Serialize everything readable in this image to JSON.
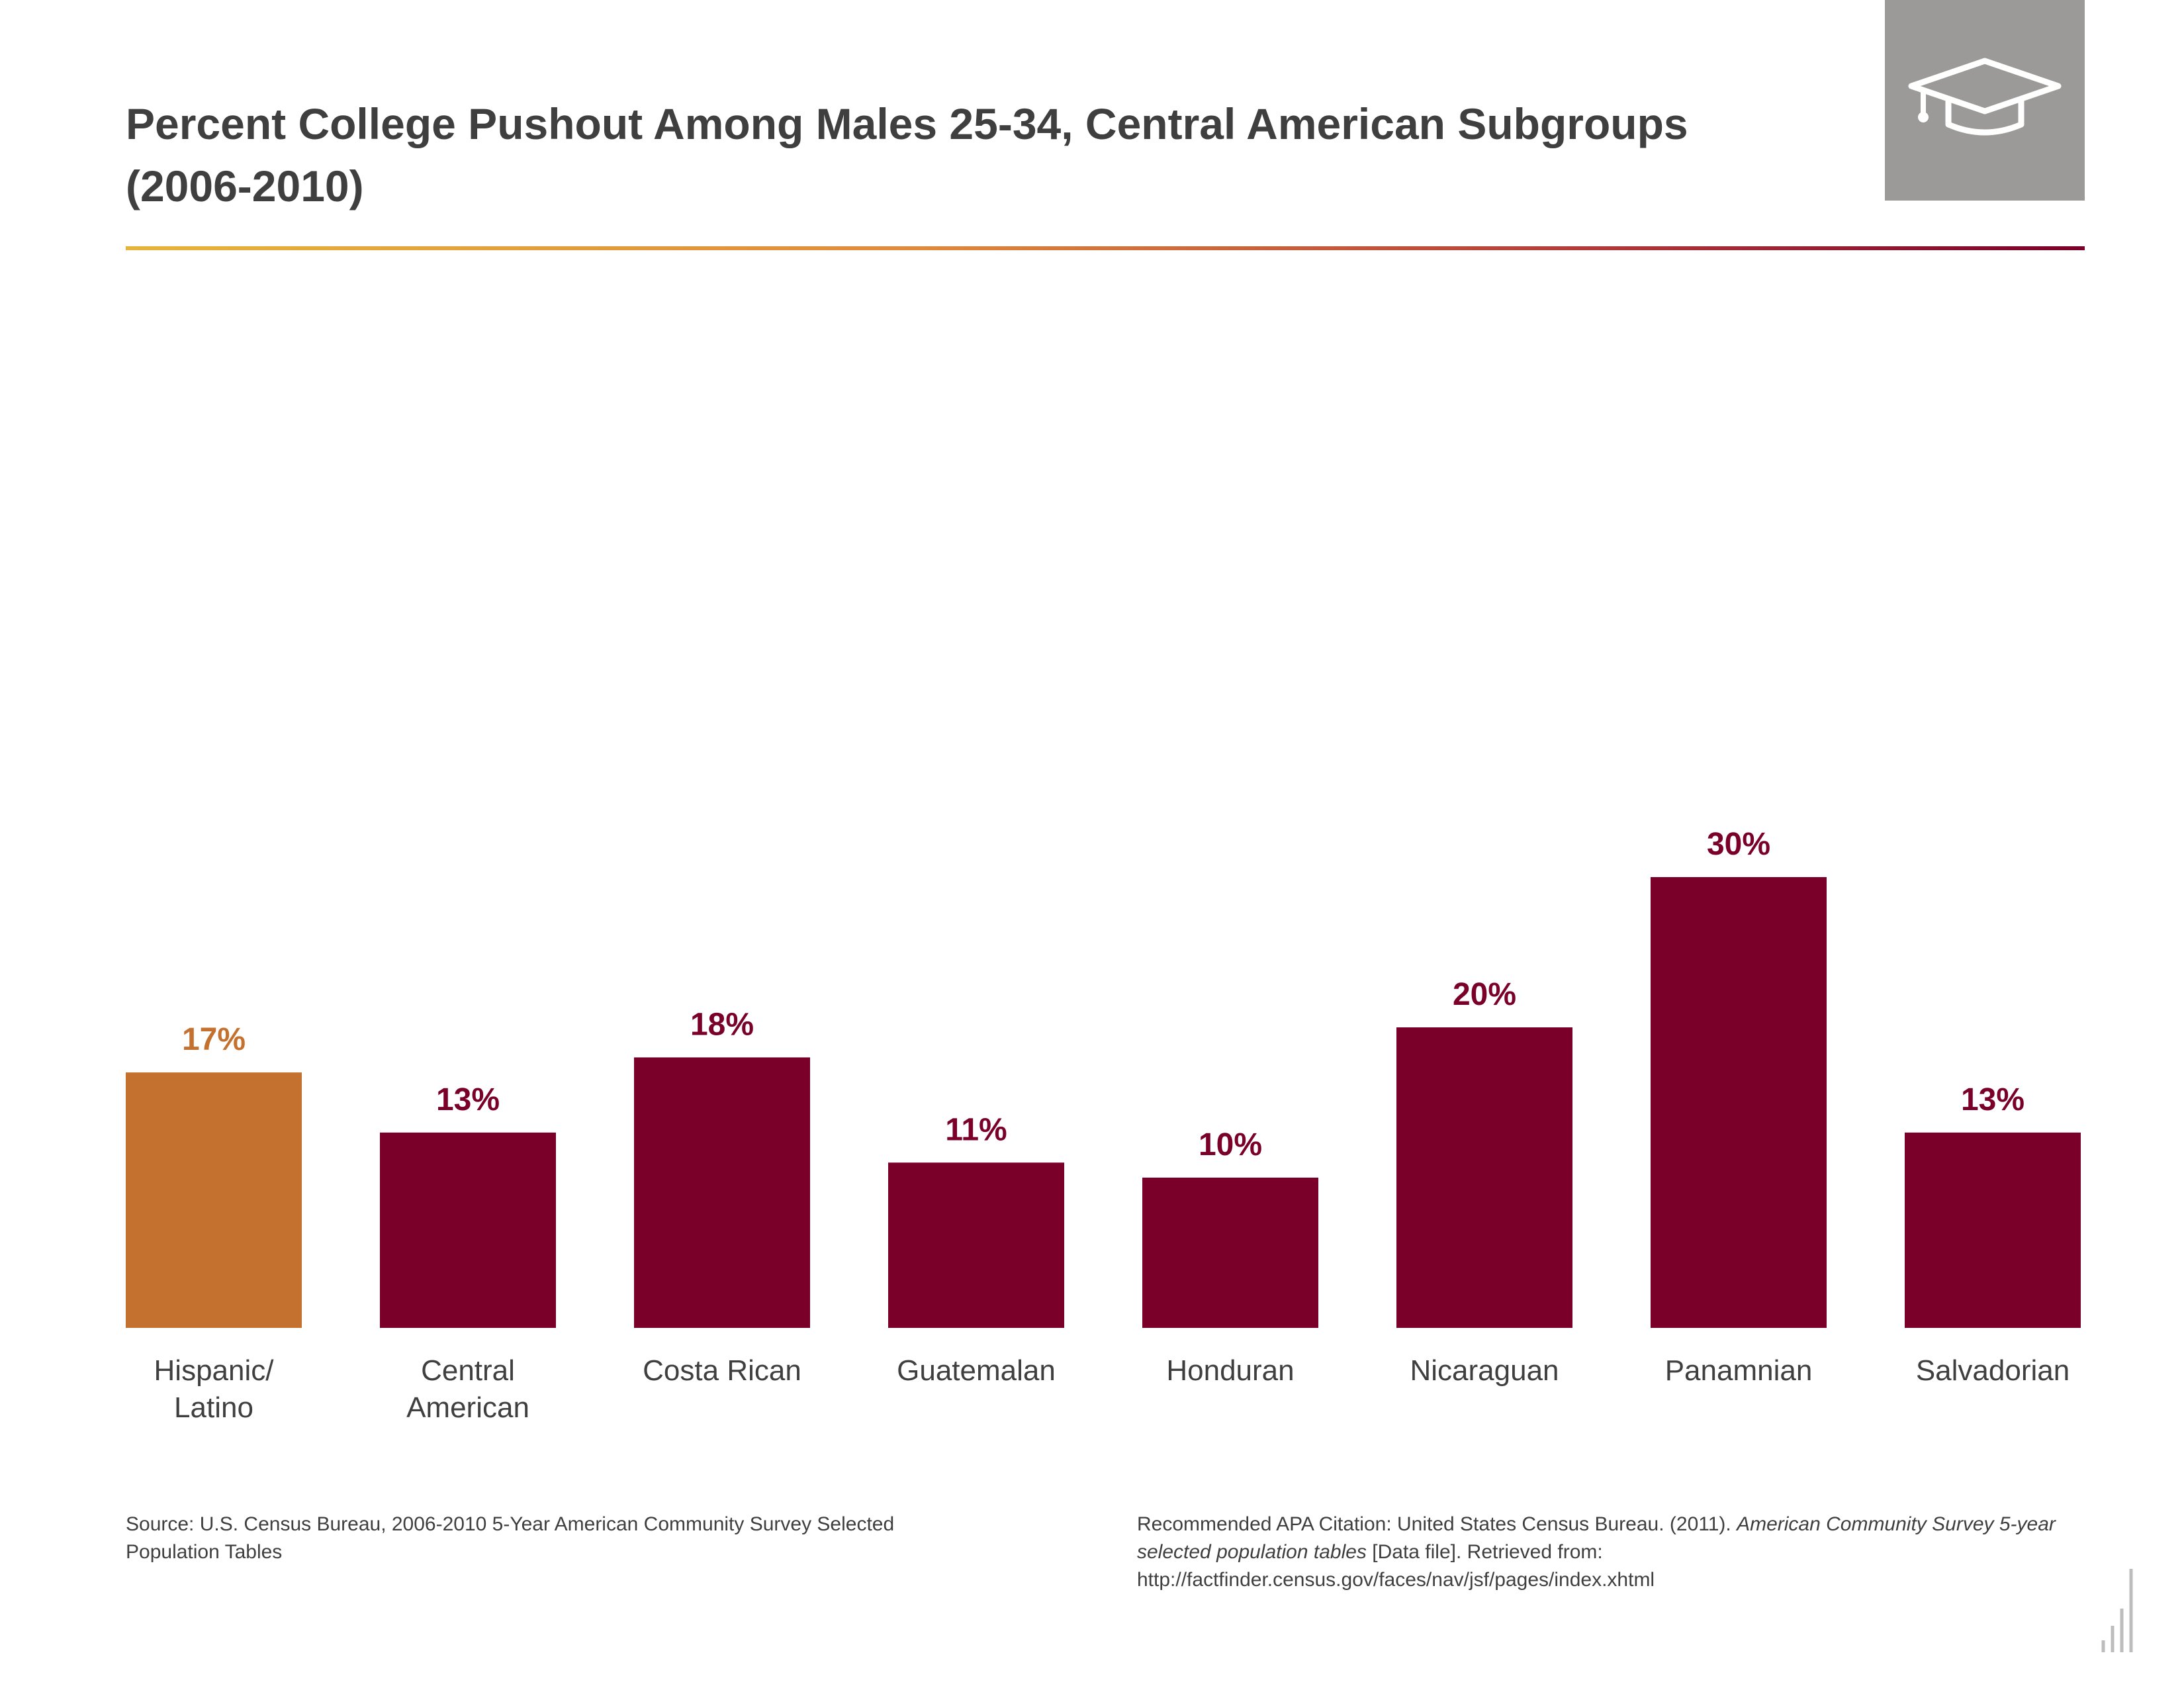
{
  "colors": {
    "highlight": "#c4702e",
    "primary": "#7a0029",
    "text": "#3f3f3f",
    "icon_bg": "#9c9a98"
  },
  "header": {
    "title_line1": "Percent College Pushout Among Males 25-34, Central American Subgroups",
    "title_line2": "(2006-2010)",
    "icon": "graduation-cap-icon"
  },
  "chart_data": {
    "type": "bar",
    "title": "Percent College Pushout Among Males 25-34, Central American Subgroups (2006-2010)",
    "categories": [
      "Hispanic/ Latino",
      "Central American",
      "Costa Rican",
      "Guatemalan",
      "Honduran",
      "Nicaraguan",
      "Panamnian",
      "Salvadorian"
    ],
    "category_lines": [
      [
        "Hispanic/",
        "Latino"
      ],
      [
        "Central",
        "American"
      ],
      [
        "Costa Rican"
      ],
      [
        "Guatemalan"
      ],
      [
        "Honduran"
      ],
      [
        "Nicaraguan"
      ],
      [
        "Panamnian"
      ],
      [
        "Salvadorian"
      ]
    ],
    "values": [
      17,
      13,
      18,
      11,
      10,
      20,
      30,
      13
    ],
    "data_labels": [
      "17%",
      "13%",
      "18%",
      "11%",
      "10%",
      "20%",
      "30%",
      "13%"
    ],
    "highlight_index": 0,
    "xlabel": "",
    "ylabel": "",
    "ylim": [
      0,
      30
    ],
    "grid": false,
    "legend": "none"
  },
  "footer": {
    "source": "Source: U.S. Census Bureau, 2006-2010 5-Year American Community Survey Selected Population Tables",
    "citation_prefix": "Recommended APA Citation: United States Census Bureau. (2011). ",
    "citation_italic": "American Community Survey 5-year selected population tables",
    "citation_suffix": " [Data file]. Retrieved from: http://factfinder.census.gov/faces/nav/jsf/pages/index.xhtml"
  }
}
